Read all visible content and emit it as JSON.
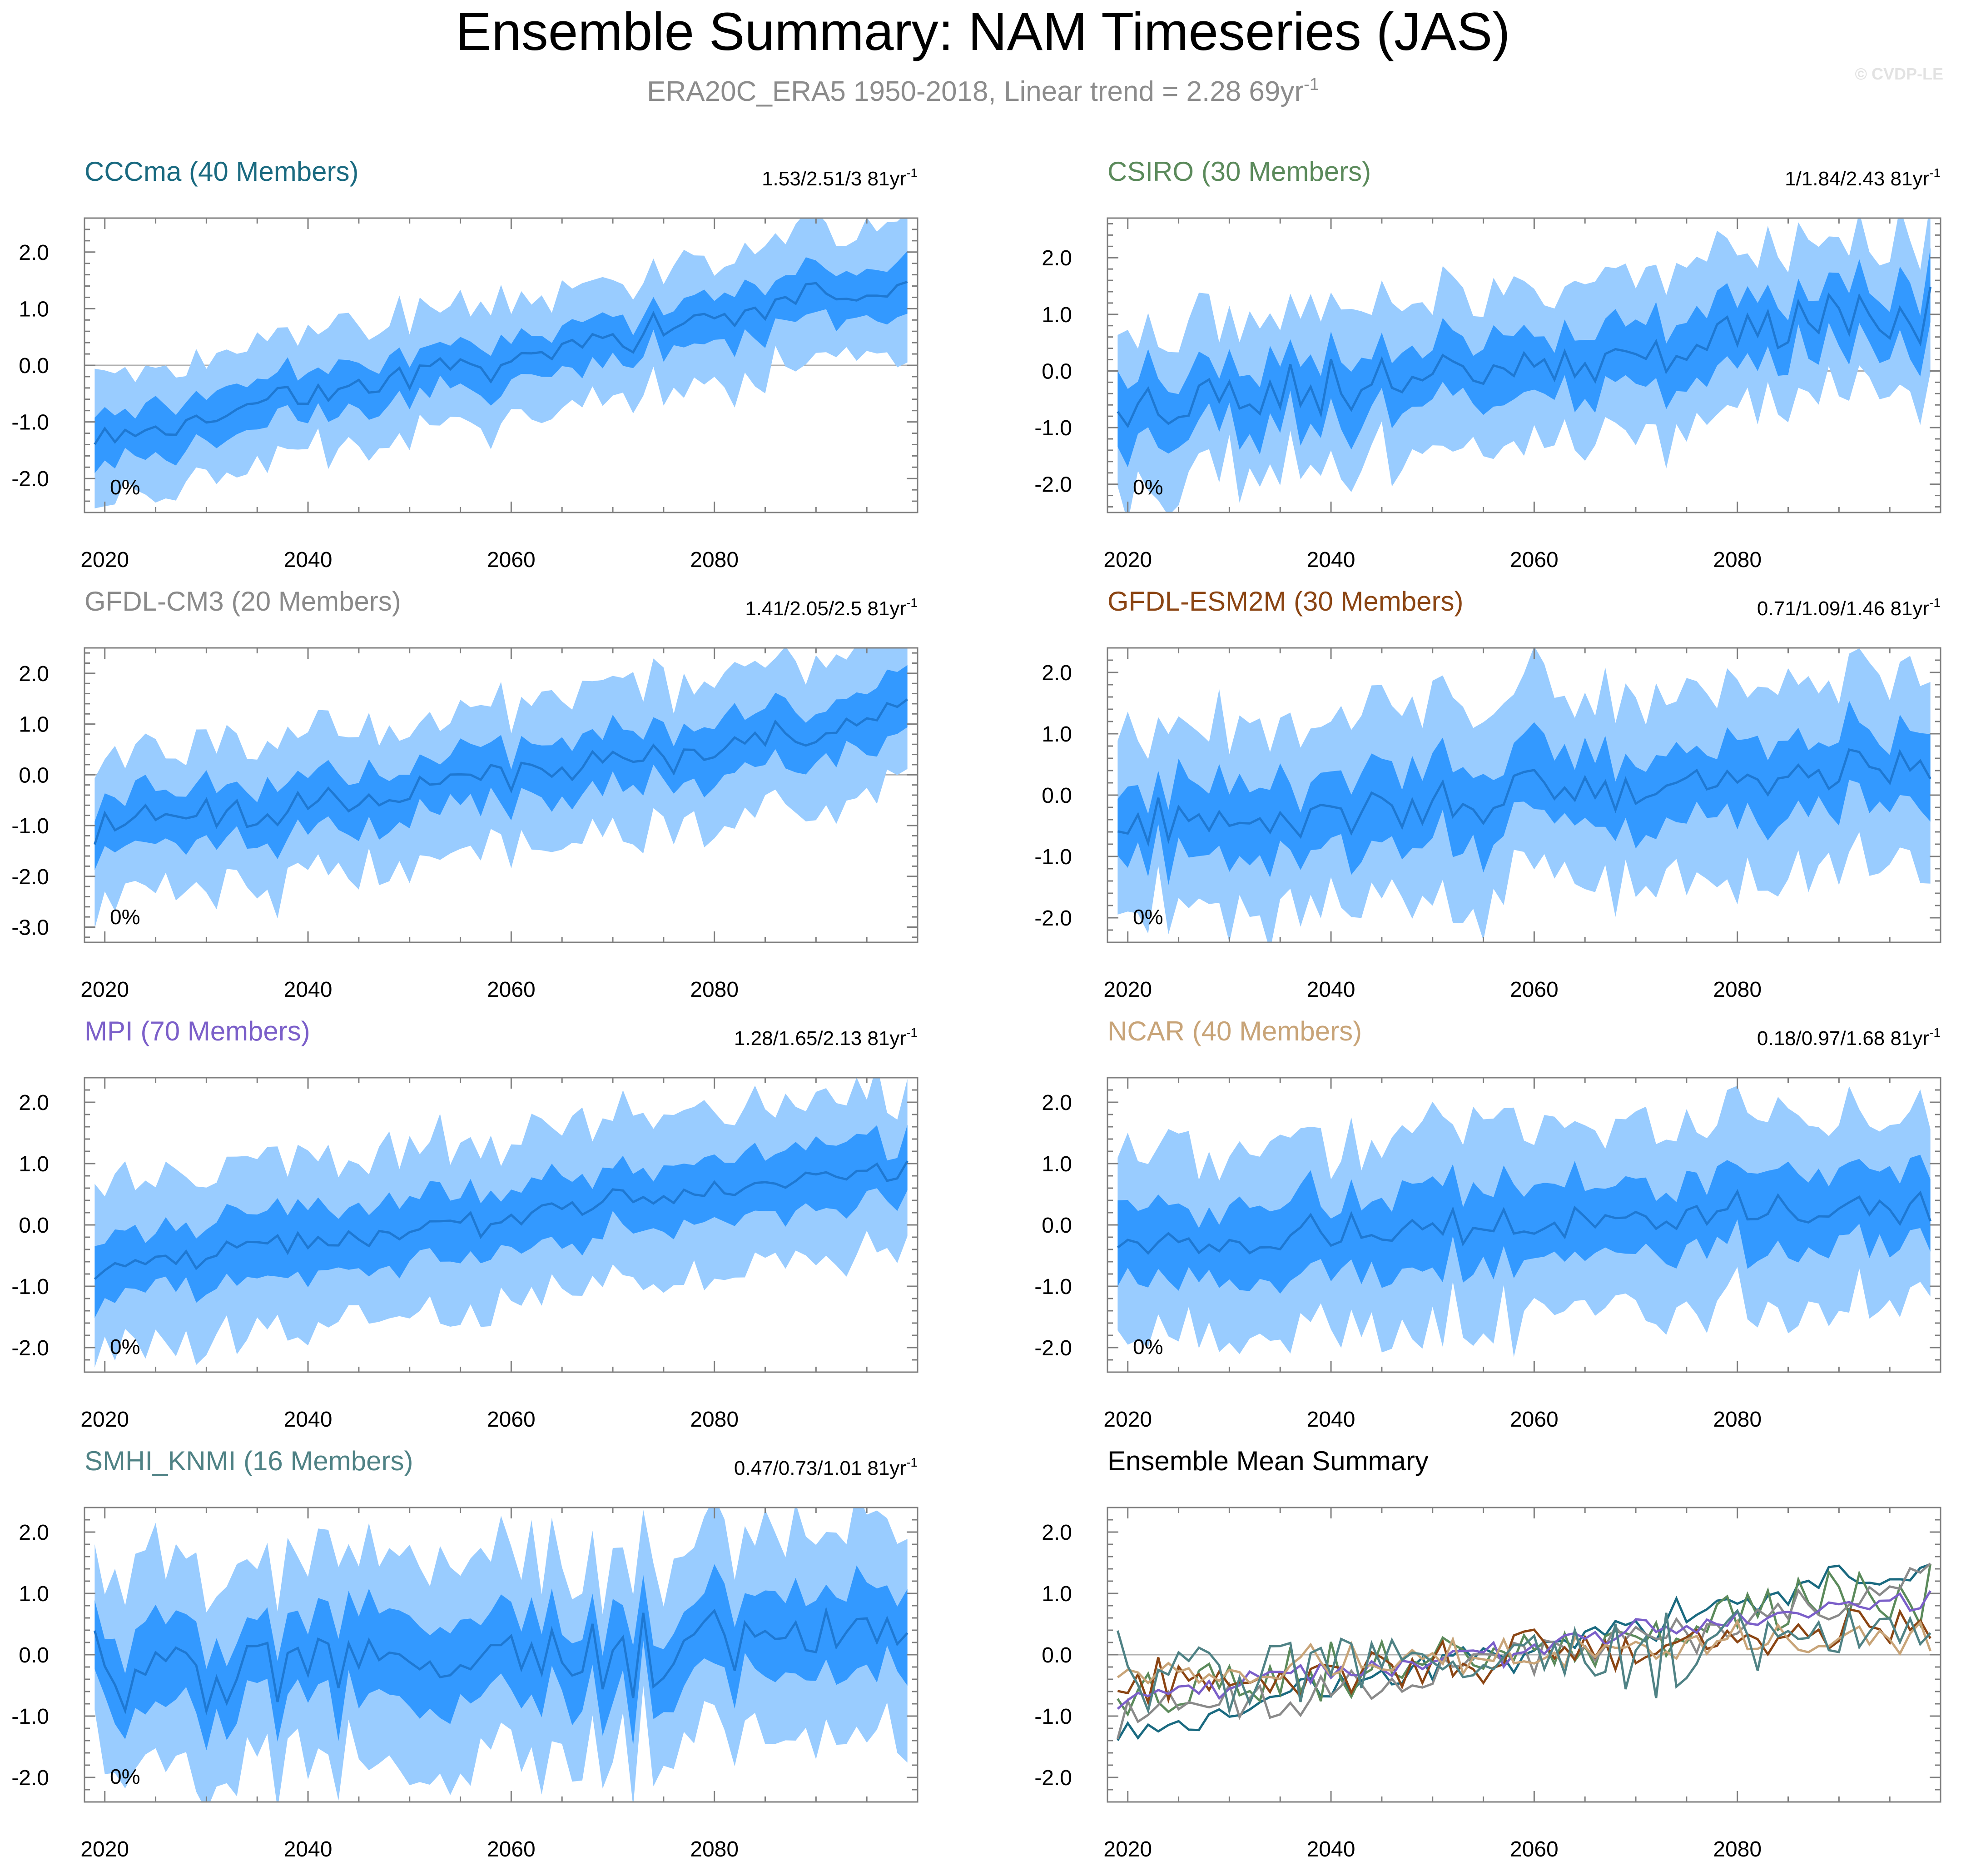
{
  "title": "Ensemble Summary: NAM Timeseries (JAS)",
  "subtitle": {
    "text": "ERA20C_ERA5 1950-2018, Linear trend = 2.28 69yr",
    "superscript": "-1"
  },
  "watermark": "© CVDP-LE",
  "colors": {
    "band_outer": "#99ccff",
    "band_inner": "#3399ff",
    "mean_line": "#1e78d2",
    "zero_line": "#b0b0b0",
    "axis": "#7f7f7f",
    "text": "#000000",
    "subtitle": "#8c8c8c"
  },
  "chart_data": [
    {
      "type": "area",
      "title": "CCCma (40 Members)",
      "title_color": "#1a6a80",
      "trend": "1.53/2.51/3 81yr",
      "trend_sup": "-1",
      "percent_label": "0%",
      "x_range": [
        2018,
        2100
      ],
      "x_ticks": [
        2020,
        2040,
        2060,
        2080
      ],
      "x_tick_labels": [
        "2020",
        "2040",
        "2060",
        "2080"
      ],
      "ylim": [
        -2.6,
        2.6
      ],
      "y_ticks": [
        2.0,
        1.0,
        0.0,
        -1.0,
        -2.0
      ],
      "y_tick_labels": [
        "2.0",
        "1.0",
        "0.0",
        "-1.0",
        "-2.0"
      ],
      "series": [
        {
          "name": "ensemble-mean",
          "start": -1.25,
          "end": 1.45,
          "noise": 0.15,
          "seed": 11
        },
        {
          "name": "inner-spread",
          "half_width": 0.42
        },
        {
          "name": "outer-spread",
          "half_width": 0.85
        }
      ]
    },
    {
      "type": "area",
      "title": "CSIRO (30 Members)",
      "title_color": "#5b8a5b",
      "trend": "1/1.84/2.43 81yr",
      "trend_sup": "-1",
      "percent_label": "0%",
      "x_range": [
        2018,
        2100
      ],
      "x_ticks": [
        2020,
        2040,
        2060,
        2080
      ],
      "x_tick_labels": [
        "2020",
        "2040",
        "2060",
        "2080"
      ],
      "ylim": [
        -2.5,
        2.7
      ],
      "y_ticks": [
        2.0,
        1.0,
        0.0,
        -1.0,
        -2.0
      ],
      "y_tick_labels": [
        "2.0",
        "1.0",
        "0.0",
        "-1.0",
        "-2.0"
      ],
      "series": [
        {
          "name": "ensemble-mean",
          "start": -0.75,
          "end": 1.0,
          "noise": 0.25,
          "seed": 23
        },
        {
          "name": "inner-spread",
          "half_width": 0.55
        },
        {
          "name": "outer-spread",
          "half_width": 1.05
        }
      ]
    },
    {
      "type": "area",
      "title": "GFDL-CM3 (20 Members)",
      "title_color": "#8a8a8a",
      "trend": "1.41/2.05/2.5 81yr",
      "trend_sup": "-1",
      "percent_label": "0%",
      "x_range": [
        2018,
        2100
      ],
      "x_ticks": [
        2020,
        2040,
        2060,
        2080
      ],
      "x_tick_labels": [
        "2020",
        "2040",
        "2060",
        "2080"
      ],
      "ylim": [
        -3.3,
        2.5
      ],
      "y_ticks": [
        2.0,
        1.0,
        0.0,
        -1.0,
        -2.0,
        -3.0
      ],
      "y_tick_labels": [
        "2.0",
        "1.0",
        "0.0",
        "-1.0",
        "-2.0",
        "-3.0"
      ],
      "series": [
        {
          "name": "ensemble-mean",
          "start": -1.1,
          "end": 1.05,
          "noise": 0.22,
          "seed": 37
        },
        {
          "name": "inner-spread",
          "half_width": 0.55
        },
        {
          "name": "outer-spread",
          "half_width": 1.1
        }
      ]
    },
    {
      "type": "area",
      "title": "GFDL-ESM2M (30 Members)",
      "title_color": "#8b4513",
      "trend": "0.71/1.09/1.46 81yr",
      "trend_sup": "-1",
      "percent_label": "0%",
      "x_range": [
        2018,
        2100
      ],
      "x_ticks": [
        2020,
        2040,
        2060,
        2080
      ],
      "x_tick_labels": [
        "2020",
        "2040",
        "2060",
        "2080"
      ],
      "ylim": [
        -2.4,
        2.4
      ],
      "y_ticks": [
        2.0,
        1.0,
        0.0,
        -1.0,
        -2.0
      ],
      "y_tick_labels": [
        "2.0",
        "1.0",
        "0.0",
        "-1.0",
        "-2.0"
      ],
      "series": [
        {
          "name": "ensemble-mean",
          "start": -0.55,
          "end": 0.55,
          "noise": 0.2,
          "seed": 41
        },
        {
          "name": "inner-spread",
          "half_width": 0.6
        },
        {
          "name": "outer-spread",
          "half_width": 1.15
        }
      ]
    },
    {
      "type": "area",
      "title": "MPI (70 Members)",
      "title_color": "#7b5fc9",
      "trend": "1.28/1.65/2.13 81yr",
      "trend_sup": "-1",
      "percent_label": "0%",
      "x_range": [
        2018,
        2100
      ],
      "x_ticks": [
        2020,
        2040,
        2060,
        2080
      ],
      "x_tick_labels": [
        "2020",
        "2040",
        "2060",
        "2080"
      ],
      "ylim": [
        -2.4,
        2.4
      ],
      "y_ticks": [
        2.0,
        1.0,
        0.0,
        -1.0,
        -2.0
      ],
      "y_tick_labels": [
        "2.0",
        "1.0",
        "0.0",
        "-1.0",
        "-2.0"
      ],
      "series": [
        {
          "name": "ensemble-mean",
          "start": -0.75,
          "end": 1.0,
          "noise": 0.12,
          "seed": 53
        },
        {
          "name": "inner-spread",
          "half_width": 0.5
        },
        {
          "name": "outer-spread",
          "half_width": 1.05
        }
      ]
    },
    {
      "type": "area",
      "title": "NCAR (40 Members)",
      "title_color": "#c8a478",
      "trend": "0.18/0.97/1.68 81yr",
      "trend_sup": "-1",
      "percent_label": "0%",
      "x_range": [
        2018,
        2100
      ],
      "x_ticks": [
        2020,
        2040,
        2060,
        2080
      ],
      "x_tick_labels": [
        "2020",
        "2040",
        "2060",
        "2080"
      ],
      "ylim": [
        -2.4,
        2.4
      ],
      "y_ticks": [
        2.0,
        1.0,
        0.0,
        -1.0,
        -2.0
      ],
      "y_tick_labels": [
        "2.0",
        "1.0",
        "0.0",
        "-1.0",
        "-2.0"
      ],
      "series": [
        {
          "name": "ensemble-mean",
          "start": -0.3,
          "end": 0.3,
          "noise": 0.15,
          "seed": 67
        },
        {
          "name": "inner-spread",
          "half_width": 0.6
        },
        {
          "name": "outer-spread",
          "half_width": 1.2
        }
      ]
    },
    {
      "type": "area",
      "title": "SMHI_KNMI (16 Members)",
      "title_color": "#4f8285",
      "trend": "0.47/0.73/1.01 81yr",
      "trend_sup": "-1",
      "percent_label": "0%",
      "x_range": [
        2018,
        2100
      ],
      "x_ticks": [
        2020,
        2040,
        2060,
        2080
      ],
      "x_tick_labels": [
        "2020",
        "2040",
        "2060",
        "2080"
      ],
      "ylim": [
        -2.4,
        2.4
      ],
      "y_ticks": [
        2.0,
        1.0,
        0.0,
        -1.0,
        -2.0
      ],
      "y_tick_labels": [
        "2.0",
        "1.0",
        "0.0",
        "-1.0",
        "-2.0"
      ],
      "series": [
        {
          "name": "ensemble-mean",
          "start": -0.4,
          "end": 0.3,
          "noise": 0.3,
          "seed": 79
        },
        {
          "name": "inner-spread",
          "half_width": 0.65
        },
        {
          "name": "outer-spread",
          "half_width": 1.25
        }
      ]
    },
    {
      "type": "line",
      "title": "Ensemble Mean Summary",
      "title_color": "#000000",
      "x_range": [
        2018,
        2100
      ],
      "x_ticks": [
        2020,
        2040,
        2060,
        2080
      ],
      "x_tick_labels": [
        "2020",
        "2040",
        "2060",
        "2080"
      ],
      "ylim": [
        -2.4,
        2.4
      ],
      "y_ticks": [
        2.0,
        1.0,
        0.0,
        -1.0,
        -2.0
      ],
      "y_tick_labels": [
        "2.0",
        "1.0",
        "0.0",
        "-1.0",
        "-2.0"
      ],
      "series": [
        {
          "name": "CCCma",
          "color": "#1a6a80",
          "start": -1.25,
          "end": 1.45,
          "noise": 0.15,
          "seed": 11
        },
        {
          "name": "CSIRO",
          "color": "#5b8a5b",
          "start": -0.75,
          "end": 1.0,
          "noise": 0.25,
          "seed": 23
        },
        {
          "name": "GFDL-CM3",
          "color": "#8a8a8a",
          "start": -1.1,
          "end": 1.05,
          "noise": 0.22,
          "seed": 37
        },
        {
          "name": "GFDL-ESM2M",
          "color": "#8b4513",
          "start": -0.55,
          "end": 0.55,
          "noise": 0.2,
          "seed": 41
        },
        {
          "name": "MPI",
          "color": "#7b5fc9",
          "start": -0.75,
          "end": 1.0,
          "noise": 0.12,
          "seed": 53
        },
        {
          "name": "NCAR",
          "color": "#c8a478",
          "start": -0.3,
          "end": 0.3,
          "noise": 0.15,
          "seed": 67
        },
        {
          "name": "SMHI_KNMI",
          "color": "#4f8285",
          "start": -0.4,
          "end": 0.3,
          "noise": 0.3,
          "seed": 79
        }
      ]
    }
  ]
}
